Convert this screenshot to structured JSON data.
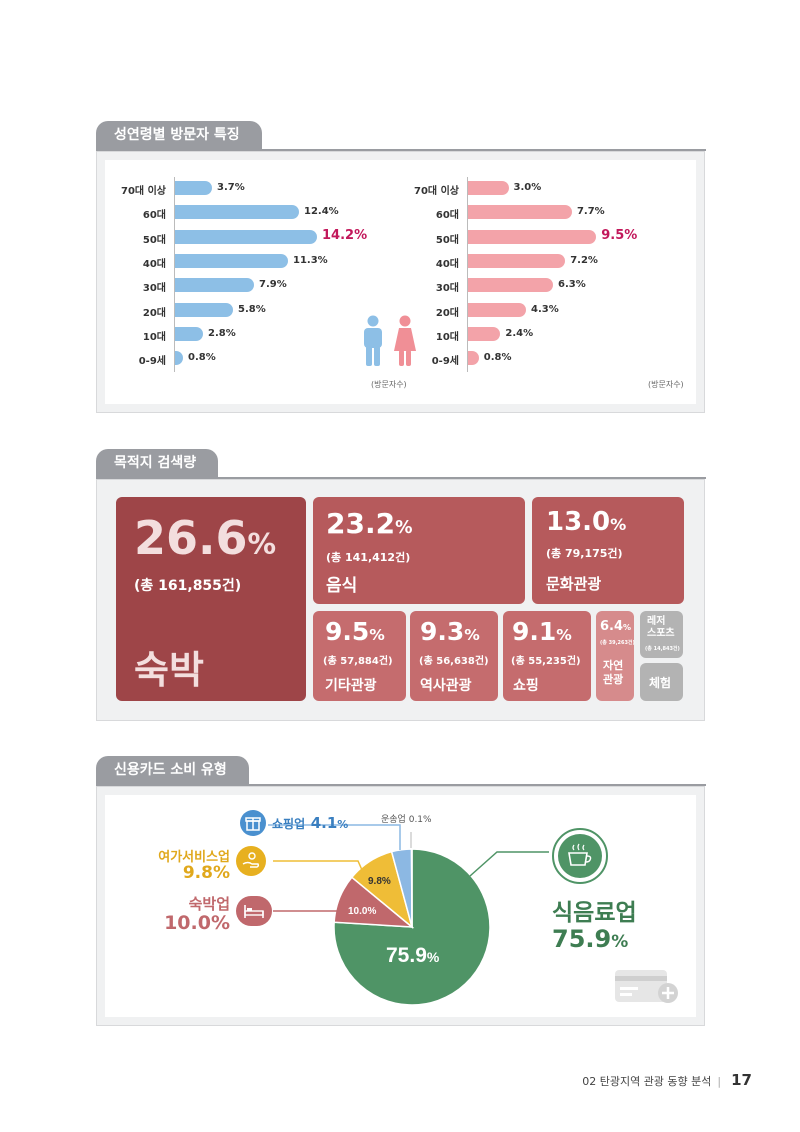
{
  "sections": {
    "demographics": {
      "title": "성연령별 방문자 특징",
      "unit": "(방문자수)",
      "categories": [
        "70대 이상",
        "60대",
        "50대",
        "40대",
        "30대",
        "20대",
        "10대",
        "0-9세"
      ],
      "male": {
        "values": [
          3.7,
          12.4,
          14.2,
          11.3,
          7.9,
          5.8,
          2.8,
          0.8
        ],
        "labels": [
          "3.7%",
          "12.4%",
          "14.2%",
          "11.3%",
          "7.9%",
          "5.8%",
          "2.8%",
          "0.8%"
        ],
        "color": "#8dbfe6"
      },
      "female": {
        "values": [
          3.0,
          7.7,
          9.5,
          7.2,
          6.3,
          4.3,
          2.4,
          0.8
        ],
        "labels": [
          "3.0%",
          "7.7%",
          "9.5%",
          "7.2%",
          "6.3%",
          "4.3%",
          "2.4%",
          "0.8%"
        ],
        "color": "#f3a3a9"
      },
      "highlight_color": "#c2185b"
    },
    "destinations": {
      "title": "목적지 검색량",
      "items": [
        {
          "pct": "26.6",
          "sym": "%",
          "count": "(총 161,855건)",
          "name": "숙박",
          "color": "#9e4548"
        },
        {
          "pct": "23.2",
          "sym": "%",
          "count": "(총 141,412건)",
          "name": "음식",
          "color": "#b65a5c"
        },
        {
          "pct": "13.0",
          "sym": "%",
          "count": "(총 79,175건)",
          "name": "문화관광",
          "color": "#b65a5c"
        },
        {
          "pct": "9.5",
          "sym": "%",
          "count": "(총 57,884건)",
          "name": "기타관광",
          "color": "#c56c6e"
        },
        {
          "pct": "9.3",
          "sym": "%",
          "count": "(총 56,638건)",
          "name": "역사관광",
          "color": "#c56c6e"
        },
        {
          "pct": "9.1",
          "sym": "%",
          "count": "(총 55,235건)",
          "name": "쇼핑",
          "color": "#c56c6e"
        },
        {
          "pct": "6.4",
          "sym": "%",
          "count": "(총 39,263건)",
          "name": "자연\n관광",
          "color": "#d68b8c"
        },
        {
          "name": "레저\n스포츠",
          "count": "(총 14,843건)",
          "color": "#b3b3b3"
        },
        {
          "name": "체험",
          "color": "#b3b3b3"
        }
      ]
    },
    "card": {
      "title": "신용카드 소비 유형",
      "chart_data": {
        "type": "pie",
        "categories": [
          "식음료업",
          "숙박업",
          "여가서비스업",
          "쇼핑업",
          "운송업"
        ],
        "values": [
          75.9,
          10.0,
          9.8,
          4.1,
          0.1
        ],
        "colors": [
          "#4f9466",
          "#c0686c",
          "#efbd37",
          "#8cb8e3",
          "#cfcfcf"
        ],
        "labels": [
          "75.9%",
          "10.0%",
          "9.8%",
          "4.1%",
          "0.1%"
        ]
      },
      "callouts": {
        "shopping": {
          "name": "쇼핑업",
          "value": "4.1",
          "sym": "%"
        },
        "transport": {
          "name": "운송업",
          "value": "0.1%"
        },
        "leisure": {
          "name": "여가서비스업",
          "value": "9.8%"
        },
        "lodging": {
          "name": "숙박업",
          "value": "10.0%"
        },
        "food": {
          "name": "식음료업",
          "value": "75.9",
          "sym": "%"
        }
      },
      "slice_labels": {
        "food_pct": "75.9",
        "food_sym": "%",
        "lodging": "10.0%",
        "leisure": "9.8%"
      }
    }
  },
  "footer": {
    "text": "02 탄광지역 관광 동향 분석",
    "sep": "|",
    "page": "17"
  }
}
